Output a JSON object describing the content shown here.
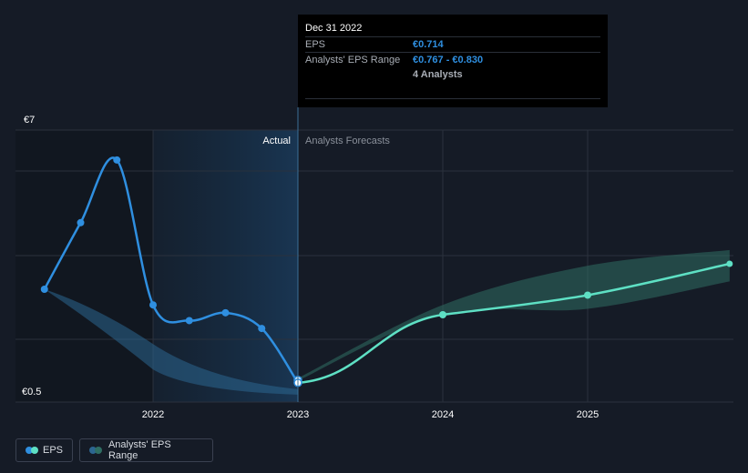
{
  "chart_data": {
    "type": "line",
    "y_axis": {
      "top_label": "€7",
      "bottom_label": "€0.5",
      "ylim": [
        0.5,
        7
      ]
    },
    "x_ticks": [
      "2022",
      "2023",
      "2024",
      "2025"
    ],
    "region_labels": {
      "actual": "Actual",
      "forecast": "Analysts Forecasts"
    },
    "series": [
      {
        "name": "EPS",
        "kind": "actual",
        "color": "#2f8fe0",
        "x": [
          2021.25,
          2021.5,
          2021.75,
          2022.0,
          2022.25,
          2022.5,
          2022.75,
          2023.0
        ],
        "y": [
          3.1,
          4.8,
          6.4,
          2.7,
          2.3,
          2.5,
          2.1,
          0.714
        ]
      },
      {
        "name": "EPS",
        "kind": "forecast",
        "color": "#5ee0c4",
        "x": [
          2023.0,
          2024.0,
          2025.0,
          2025.98
        ],
        "y": [
          0.714,
          2.45,
          2.95,
          3.75
        ]
      }
    ],
    "ranges": [
      {
        "name": "Analysts' EPS Range",
        "kind": "actual",
        "x": [
          2021.25,
          2022.0,
          2023.0
        ],
        "low": [
          3.1,
          1.7,
          0.55
        ],
        "high": [
          3.1,
          1.7,
          0.55
        ]
      },
      {
        "name": "Analysts' EPS Range",
        "kind": "forecast",
        "x": [
          2023.0,
          2024.0,
          2025.0,
          2025.98
        ],
        "low": [
          0.767,
          2.45,
          2.6,
          3.3
        ],
        "high": [
          0.83,
          2.7,
          3.7,
          4.1
        ]
      }
    ]
  },
  "tooltip": {
    "date": "Dec 31 2022",
    "eps_label": "EPS",
    "eps_value": "€0.714",
    "range_label": "Analysts' EPS Range",
    "range_value": "€0.767 - €0.830",
    "analysts": "4 Analysts"
  },
  "legend": {
    "eps": "EPS",
    "range": "Analysts' EPS Range",
    "eps_colors": [
      "#2f8fe0",
      "#5ee0c4"
    ],
    "range_colors": [
      "#2c6690",
      "#2f6e63"
    ]
  },
  "colors": {
    "background": "#151b26",
    "actual_shade": "#1a3a5a",
    "grid": "#2a313d"
  }
}
